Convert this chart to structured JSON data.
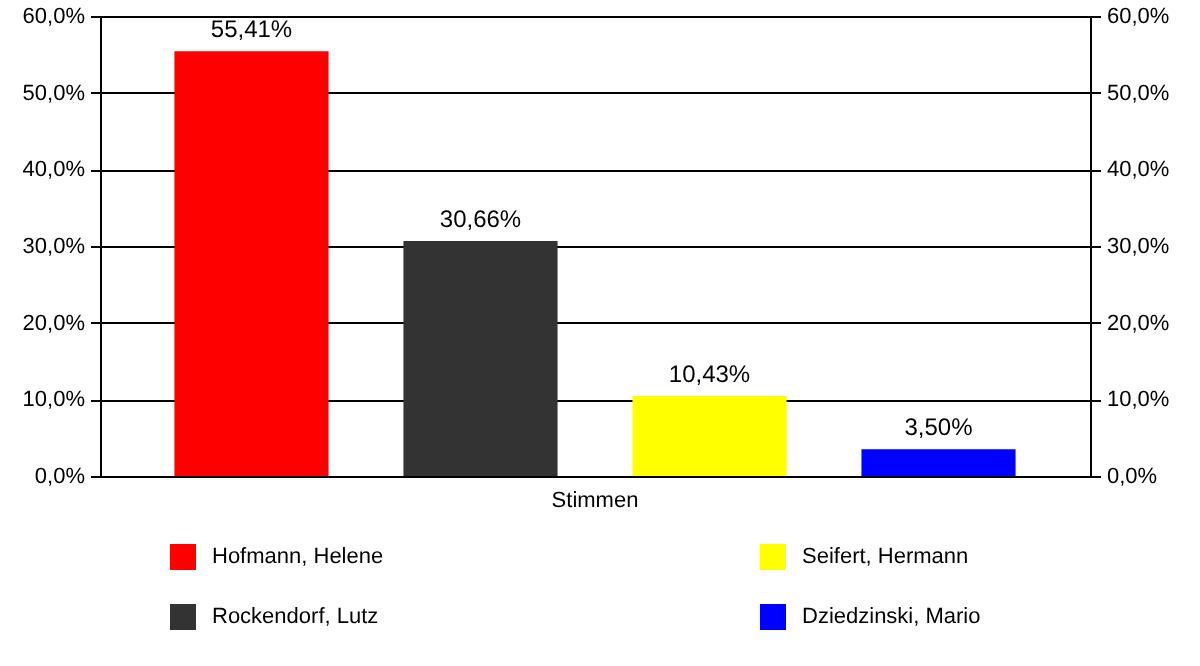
{
  "chart_data": {
    "type": "bar",
    "categories": [
      "Stimmen"
    ],
    "series": [
      {
        "name": "Hofmann, Helene",
        "color": "#ff0000",
        "values": [
          55.41
        ],
        "value_labels": [
          "55,41%"
        ]
      },
      {
        "name": "Rockendorf, Lutz",
        "color": "#333333",
        "values": [
          30.66
        ],
        "value_labels": [
          "30,66%"
        ]
      },
      {
        "name": "Seifert, Hermann",
        "color": "#ffff00",
        "values": [
          10.43
        ],
        "value_labels": [
          "10,43%"
        ]
      },
      {
        "name": "Dziedzinski, Mario",
        "color": "#0000ff",
        "values": [
          3.5
        ],
        "value_labels": [
          "3,50%"
        ]
      }
    ],
    "ylim": [
      0,
      60
    ],
    "yticks": [
      {
        "value": 0,
        "label": "0,0%"
      },
      {
        "value": 10,
        "label": "10,0%"
      },
      {
        "value": 20,
        "label": "20,0%"
      },
      {
        "value": 30,
        "label": "30,0%"
      },
      {
        "value": 40,
        "label": "40,0%"
      },
      {
        "value": 50,
        "label": "50,0%"
      },
      {
        "value": 60,
        "label": "60,0%"
      }
    ],
    "grid": "y",
    "legend": "bottom"
  }
}
